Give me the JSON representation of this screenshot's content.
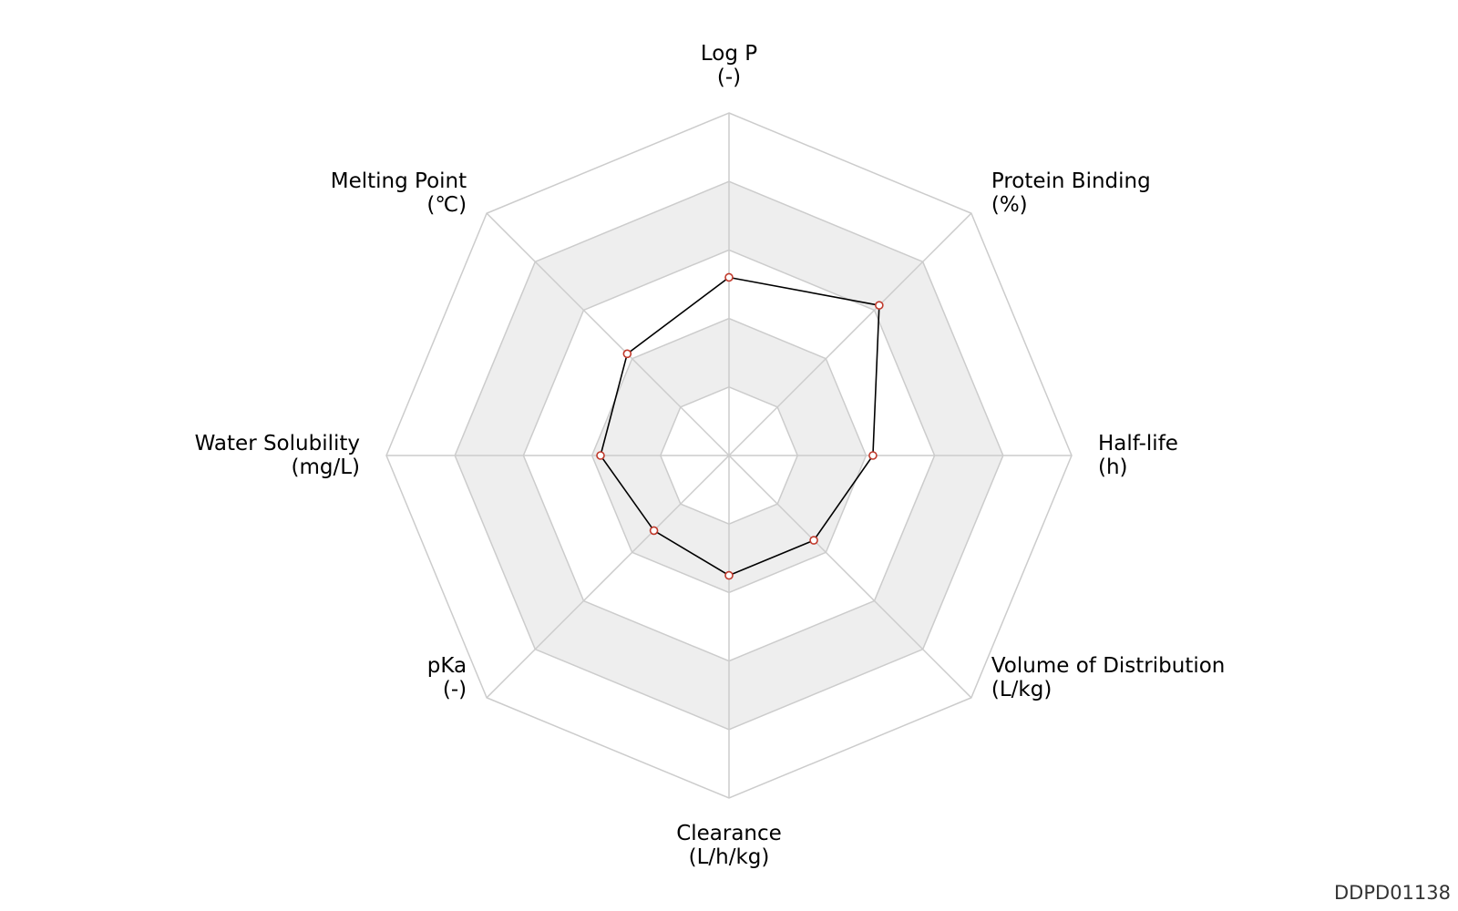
{
  "chart_data": {
    "type": "radar",
    "title": "",
    "axes": [
      {
        "name": "Log P",
        "unit": "(-)"
      },
      {
        "name": "Protein Binding",
        "unit": "(%)"
      },
      {
        "name": "Half-life",
        "unit": "(h)"
      },
      {
        "name": "Volume of Distribution",
        "unit": "(L/kg)"
      },
      {
        "name": "Clearance",
        "unit": "(L/h/kg)"
      },
      {
        "name": "pKa",
        "unit": "(-)"
      },
      {
        "name": "Water Solubility",
        "unit": "(mg/L)"
      },
      {
        "name": "Melting Point",
        "unit": "(℃)"
      }
    ],
    "range": [
      0,
      1
    ],
    "rings": 5,
    "grid": true,
    "series": [
      {
        "values": [
          0.52,
          0.62,
          0.42,
          0.35,
          0.35,
          0.31,
          0.375,
          0.42
        ]
      }
    ],
    "colors": {
      "grid_line": "#cccccc",
      "band_fill": "#eeeeee",
      "series_line": "#000000",
      "marker_stroke": "#c0392b",
      "marker_fill": "#ffffff"
    }
  },
  "watermark": "DDPD01138"
}
